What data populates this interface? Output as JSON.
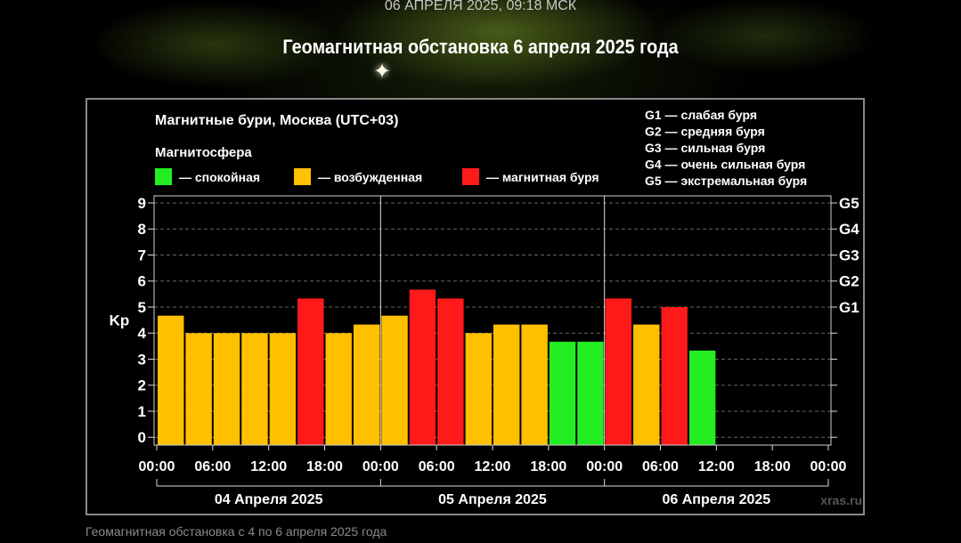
{
  "page": {
    "top_datetime": "06 АПРЕЛЯ 2025, 09:18 МСК",
    "heading": "Геомагнитная обстановка 6 апреля 2025 года",
    "caption": "Геомагнитная обстановка с 4 по 6 апреля 2025 года"
  },
  "colors": {
    "quiet": "#22ee22",
    "excited": "#ffc000",
    "storm": "#ff1a1a",
    "background": "#000000",
    "frame": "#888888"
  },
  "chart_data": {
    "type": "bar",
    "title": "Магнитные бури, Москва (UTC+03)",
    "subtitle": "Магнитосфера",
    "ylabel": "Kp",
    "ylim": [
      0,
      9
    ],
    "yticks": [
      "0",
      "1",
      "2",
      "3",
      "4",
      "5",
      "6",
      "7",
      "8",
      "9"
    ],
    "right_ticks": [
      {
        "value": 5,
        "label": "G1"
      },
      {
        "value": 6,
        "label": "G2"
      },
      {
        "value": 7,
        "label": "G3"
      },
      {
        "value": 8,
        "label": "G4"
      },
      {
        "value": 9,
        "label": "G5"
      }
    ],
    "xticks": [
      "00:00",
      "06:00",
      "12:00",
      "18:00",
      "00:00",
      "06:00",
      "12:00",
      "18:00",
      "00:00",
      "06:00",
      "12:00",
      "18:00",
      "00:00"
    ],
    "days": [
      "04 Апреля 2025",
      "05 Апреля 2025",
      "06 Апреля 2025"
    ],
    "slots_per_day": 8,
    "values": [
      4.67,
      4.0,
      4.0,
      4.0,
      4.0,
      5.33,
      4.0,
      4.33,
      4.67,
      5.67,
      5.33,
      4.0,
      4.33,
      4.33,
      3.67,
      3.67,
      5.33,
      4.33,
      5.0,
      3.33
    ],
    "levels": [
      "excited",
      "excited",
      "excited",
      "excited",
      "excited",
      "storm",
      "excited",
      "excited",
      "excited",
      "storm",
      "storm",
      "excited",
      "excited",
      "excited",
      "quiet",
      "quiet",
      "storm",
      "excited",
      "storm",
      "quiet"
    ],
    "legend": [
      {
        "key": "quiet",
        "label": "— спокойная"
      },
      {
        "key": "excited",
        "label": "— возбужденная"
      },
      {
        "key": "storm",
        "label": "— магнитная буря"
      }
    ],
    "storm_scale": [
      "G1 — слабая буря",
      "G2 — средняя буря",
      "G3 — сильная буря",
      "G4 — очень сильная буря",
      "G5 — экстремальная буря"
    ],
    "watermark": "xras.ru",
    "grid": true
  }
}
